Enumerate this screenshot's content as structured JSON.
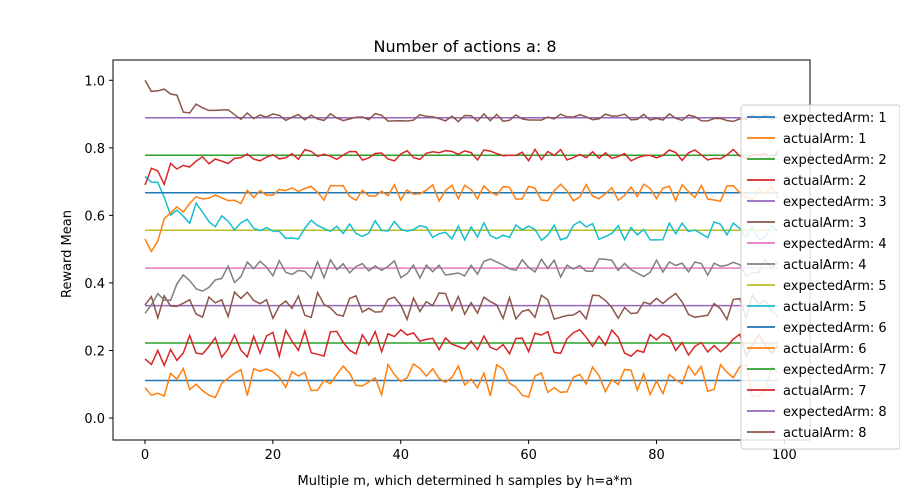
{
  "chart_data": {
    "type": "line",
    "title": "Number of actions a: 8",
    "xlabel": "Multiple m, which determined h samples by h=a*m",
    "ylabel": "Reward Mean",
    "xlim": [
      -5,
      104
    ],
    "ylim": [
      -0.065,
      1.06
    ],
    "xticks": [
      "0",
      "20",
      "40",
      "60",
      "80",
      "100"
    ],
    "yticks": [
      "0.0",
      "0.2",
      "0.4",
      "0.6",
      "0.8",
      "1.0"
    ],
    "grid": false,
    "legend_position": "right",
    "x_range": [
      0,
      99
    ],
    "series": [
      {
        "name": "expectedArm: 1",
        "color": "#1f77b4",
        "kind": "constant",
        "value": 0.111
      },
      {
        "name": "actualArm: 1",
        "color": "#ff7f0e",
        "kind": "noisy",
        "value": 0.111,
        "start": 0.09,
        "amp": 0.05,
        "seed": 11
      },
      {
        "name": "expectedArm: 2",
        "color": "#2ca02c",
        "kind": "constant",
        "value": 0.222
      },
      {
        "name": "actualArm: 2",
        "color": "#d62728",
        "kind": "noisy",
        "value": 0.222,
        "start": 0.175,
        "amp": 0.04,
        "seed": 22
      },
      {
        "name": "expectedArm: 3",
        "color": "#9467bd",
        "kind": "constant",
        "value": 0.333
      },
      {
        "name": "actualArm: 3",
        "color": "#8c564b",
        "kind": "noisy",
        "value": 0.333,
        "start": 0.335,
        "amp": 0.042,
        "seed": 33
      },
      {
        "name": "expectedArm: 4",
        "color": "#e377c2",
        "kind": "constant",
        "value": 0.444
      },
      {
        "name": "actualArm: 4",
        "color": "#7f7f7f",
        "kind": "noisy",
        "value": 0.444,
        "start": 0.31,
        "amp": 0.03,
        "seed": 44
      },
      {
        "name": "expectedArm: 5",
        "color": "#bcbd22",
        "kind": "constant",
        "value": 0.556
      },
      {
        "name": "actualArm: 5",
        "color": "#17becf",
        "kind": "noisy",
        "value": 0.556,
        "start": 0.715,
        "amp": 0.03,
        "seed": 55
      },
      {
        "name": "expectedArm: 6",
        "color": "#1f77b4",
        "kind": "constant",
        "value": 0.667
      },
      {
        "name": "actualArm: 6",
        "color": "#ff7f0e",
        "kind": "noisy",
        "value": 0.667,
        "start": 0.53,
        "amp": 0.025,
        "seed": 66
      },
      {
        "name": "expectedArm: 7",
        "color": "#2ca02c",
        "kind": "constant",
        "value": 0.778
      },
      {
        "name": "actualArm: 7",
        "color": "#d62728",
        "kind": "noisy",
        "value": 0.778,
        "start": 0.69,
        "amp": 0.018,
        "seed": 77
      },
      {
        "name": "expectedArm: 8",
        "color": "#9467bd",
        "kind": "constant",
        "value": 0.889
      },
      {
        "name": "actualArm: 8",
        "color": "#8c564b",
        "kind": "noisy",
        "value": 0.889,
        "start": 1.0,
        "amp": 0.012,
        "seed": 88
      }
    ]
  }
}
